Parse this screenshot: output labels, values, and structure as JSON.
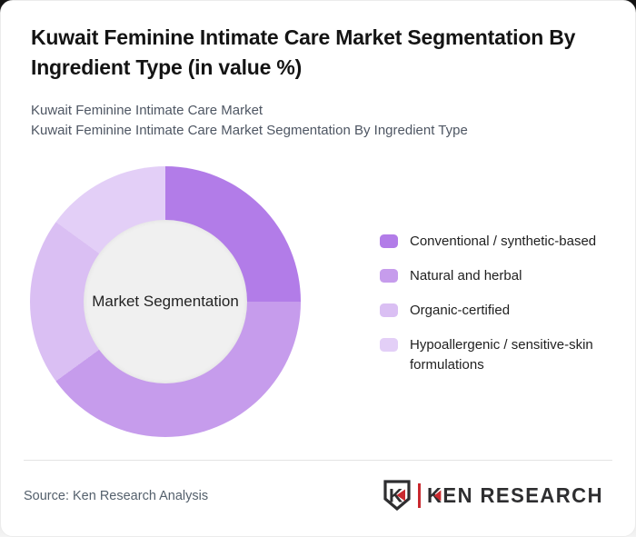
{
  "header": {
    "title": "Kuwait Feminine Intimate Care Market Segmentation By Ingredient Type (in value %)",
    "subtitles": [
      "Kuwait Feminine Intimate Care Market",
      "Kuwait Feminine Intimate Care Market Segmentation By Ingredient Type"
    ]
  },
  "chart_data": {
    "type": "pie",
    "subtype": "donut",
    "title": "Kuwait Feminine Intimate Care Market Segmentation By Ingredient Type (in value %)",
    "center_label": "Market Segmentation",
    "unit": "value %",
    "categories": [
      "Conventional / synthetic-based",
      "Natural and herbal",
      "Organic-certified",
      "Hypoallergenic / sensitive-skin formulations"
    ],
    "values": [
      25,
      40,
      20,
      15
    ],
    "colors": [
      "#b27ce8",
      "#c69cec",
      "#dabff3",
      "#e3cff7"
    ],
    "hole_color": "#f0f0f0",
    "legend_position": "right",
    "start_angle_deg": 0,
    "direction": "clockwise",
    "data_labels_shown": false
  },
  "footer": {
    "source_text": "Source: Ken Research Analysis",
    "logo": {
      "mark_letter": "K",
      "brand_first_letter": "K",
      "brand_rest": "EN RESEARCH",
      "text_color": "#2e2e30",
      "accent_color": "#c9292f"
    }
  }
}
